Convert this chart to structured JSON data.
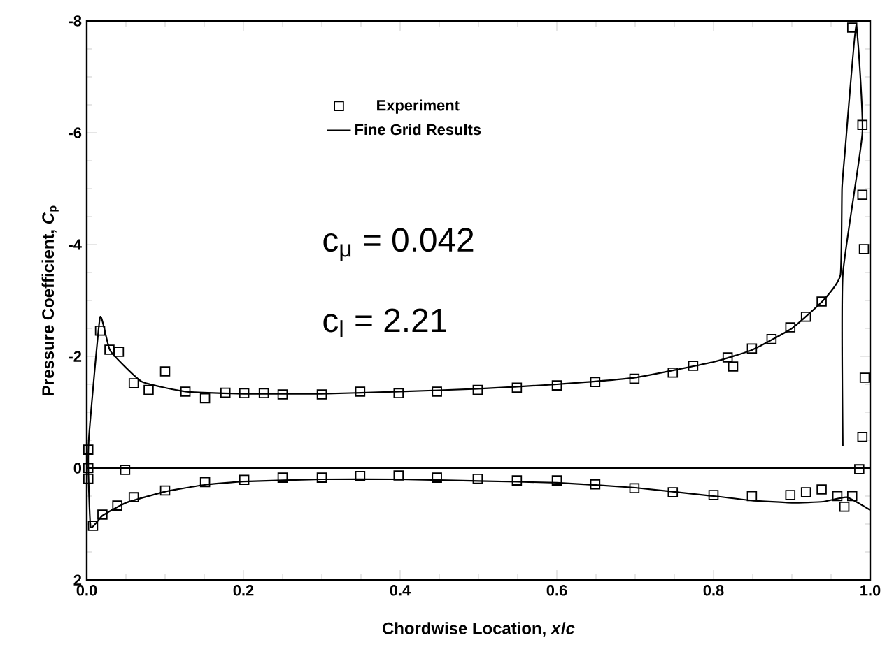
{
  "chart_data": {
    "type": "scatter",
    "xlabel": "Chordwise Location, *x*/*c*",
    "ylabel": "Pressure Coefficient, *C*$_{p}$",
    "xlim": [
      0,
      1
    ],
    "ylim": [
      2,
      -8
    ],
    "xticks": [
      {
        "value": 0,
        "label": "0.0"
      },
      0.2,
      0.4,
      0.6,
      0.8,
      {
        "value": 1,
        "label": "1.0"
      }
    ],
    "yticks": [
      2,
      0,
      -2,
      -4,
      -6,
      -8
    ],
    "legend": "top",
    "annotations": [
      "c$_{μ}$ = 0.042",
      "c$_{l}$ = 2.21"
    ],
    "ref_lines": [
      {
        "axis": "y",
        "value": 0,
        "color": "#000000"
      }
    ],
    "series": [
      {
        "name": "Experiment",
        "marker": "square",
        "color": "#000000",
        "x": [
          0.002,
          0.002,
          0.017,
          0.029,
          0.041,
          0.06,
          0.079,
          0.1,
          0.126,
          0.151,
          0.177,
          0.201,
          0.226,
          0.25,
          0.3,
          0.349,
          0.398,
          0.447,
          0.499,
          0.549,
          0.6,
          0.649,
          0.699,
          0.748,
          0.774,
          0.818,
          0.825,
          0.849,
          0.874,
          0.898,
          0.918,
          0.938,
          0.977,
          0.99,
          0.99,
          0.992,
          0.993,
          0.99,
          0.002,
          0.008,
          0.02,
          0.039,
          0.049,
          0.06,
          0.1,
          0.151,
          0.201,
          0.25,
          0.3,
          0.349,
          0.398,
          0.447,
          0.499,
          0.549,
          0.6,
          0.649,
          0.699,
          0.748,
          0.8,
          0.849,
          0.898,
          0.918,
          0.938,
          0.958,
          0.967,
          0.977,
          0.986
        ],
        "values": [
          -0.33,
          0.0,
          -2.46,
          -2.12,
          -2.08,
          -1.52,
          -1.4,
          -1.73,
          -1.37,
          -1.25,
          -1.35,
          -1.34,
          -1.34,
          -1.32,
          -1.32,
          -1.37,
          -1.34,
          -1.37,
          -1.4,
          -1.44,
          -1.48,
          -1.54,
          -1.6,
          -1.71,
          -1.83,
          -1.98,
          -1.82,
          -2.14,
          -2.31,
          -2.52,
          -2.71,
          -2.98,
          -7.88,
          -6.14,
          -4.89,
          -3.92,
          -1.62,
          -0.56,
          0.19,
          1.03,
          0.83,
          0.67,
          0.03,
          0.52,
          0.4,
          0.25,
          0.21,
          0.17,
          0.17,
          0.14,
          0.13,
          0.17,
          0.19,
          0.22,
          0.22,
          0.29,
          0.36,
          0.43,
          0.48,
          0.5,
          0.48,
          0.43,
          0.38,
          0.5,
          0.69,
          0.5,
          0.02
        ]
      },
      {
        "name": "Fine Grid Results",
        "type": "line",
        "line_style": "solid",
        "color": "#000000",
        "x": [
          1.0,
          0.97,
          0.94,
          0.9,
          0.85,
          0.8,
          0.7,
          0.6,
          0.5,
          0.4,
          0.3,
          0.2,
          0.15,
          0.1,
          0.05,
          0.02,
          0.005,
          0.002,
          0.003,
          0.017,
          0.03,
          0.07,
          0.126,
          0.2,
          0.3,
          0.4,
          0.5,
          0.6,
          0.7,
          0.8,
          0.85,
          0.9,
          0.94,
          0.962,
          0.964,
          0.968,
          0.982,
          0.99,
          null,
          0.965,
          0.965
        ],
        "values": [
          0.75,
          0.52,
          0.6,
          0.62,
          0.58,
          0.5,
          0.35,
          0.26,
          0.23,
          0.2,
          0.2,
          0.24,
          0.3,
          0.42,
          0.62,
          0.85,
          1.05,
          0.0,
          -0.6,
          -2.7,
          -2.1,
          -1.55,
          -1.37,
          -1.33,
          -1.33,
          -1.37,
          -1.42,
          -1.5,
          -1.62,
          -1.9,
          -2.12,
          -2.5,
          -3.0,
          -3.46,
          -5.0,
          -5.7,
          -7.92,
          -6.0,
          null,
          -3.46,
          -0.4
        ]
      }
    ]
  }
}
